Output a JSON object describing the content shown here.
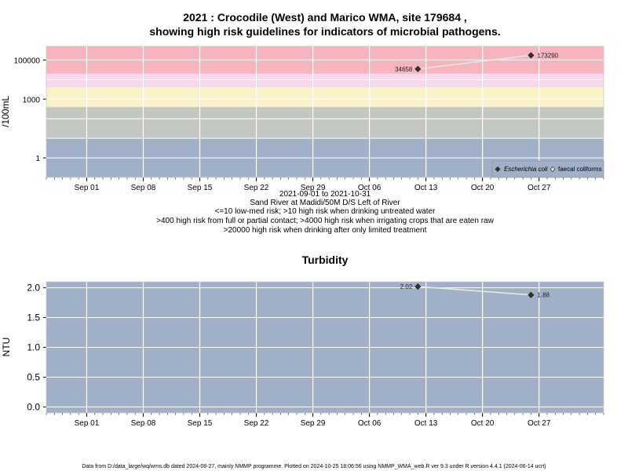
{
  "chart_data": [
    {
      "type": "scatter",
      "title_line1": "2021 : Crocodile (West) and Marico WMA, site 179684 ,",
      "title_line2": "showing high risk guidelines for indicators of microbial pathogens.",
      "ylabel": "/100mL",
      "yscale": "log",
      "ylim": [
        0.1,
        500000
      ],
      "yticks": [
        {
          "v": 1,
          "label": "1"
        },
        {
          "v": 1000,
          "label": "1000"
        },
        {
          "v": 100000,
          "label": "100000"
        }
      ],
      "xlim": [
        "2021-08-27",
        "2021-11-04"
      ],
      "xticks": [
        {
          "date": "2021-09-01",
          "label": "Sep 01"
        },
        {
          "date": "2021-09-08",
          "label": "Sep 08"
        },
        {
          "date": "2021-09-15",
          "label": "Sep 15"
        },
        {
          "date": "2021-09-22",
          "label": "Sep 22"
        },
        {
          "date": "2021-09-29",
          "label": "Sep 29"
        },
        {
          "date": "2021-10-06",
          "label": "Oct 06"
        },
        {
          "date": "2021-10-13",
          "label": "Oct 13"
        },
        {
          "date": "2021-10-20",
          "label": "Oct 20"
        },
        {
          "date": "2021-10-27",
          "label": "Oct 27"
        }
      ],
      "bands": [
        {
          "from": 0.1,
          "to": 10,
          "color": "#a0b0c8"
        },
        {
          "from": 10,
          "to": 400,
          "color": "#c2c8c0"
        },
        {
          "from": 400,
          "to": 4000,
          "color": "#f8f2c6"
        },
        {
          "from": 4000,
          "to": 20000,
          "color": "#f8d8ec"
        },
        {
          "from": 20000,
          "to": 500000,
          "color": "#f8b4bc"
        }
      ],
      "series": [
        {
          "name": "Escherichia coli",
          "marker": "filled-diamond",
          "points": [
            {
              "x": "2021-10-12",
              "y": 34658,
              "label": "34658"
            },
            {
              "x": "2021-10-26",
              "y": 173290,
              "label": "173290"
            }
          ]
        },
        {
          "name": "faecal coliforms",
          "marker": "open-diamond",
          "points": []
        }
      ],
      "legend_position": "bottom-right",
      "notes": [
        "2021-09-01 to 2021-10-31",
        "Sand River at Madidi/50M D/S Left of River",
        "<=10 low-med risk; >10 high risk when drinking untreated water",
        ">400 high risk from full or partial contact; >4000 high risk when irrigating crops that are eaten raw",
        ">20000 high risk when drinking after only limited treatment"
      ]
    },
    {
      "type": "scatter",
      "title": "Turbidity",
      "ylabel": "NTU",
      "ylim": [
        -0.1,
        2.1
      ],
      "yticks": [
        {
          "v": 0,
          "label": "0.0"
        },
        {
          "v": 0.5,
          "label": "0.5"
        },
        {
          "v": 1,
          "label": "1.0"
        },
        {
          "v": 1.5,
          "label": "1.5"
        },
        {
          "v": 2,
          "label": "2.0"
        }
      ],
      "xlim": [
        "2021-08-27",
        "2021-11-04"
      ],
      "xticks": [
        {
          "date": "2021-09-01",
          "label": "Sep 01"
        },
        {
          "date": "2021-09-08",
          "label": "Sep 08"
        },
        {
          "date": "2021-09-15",
          "label": "Sep 15"
        },
        {
          "date": "2021-09-22",
          "label": "Sep 22"
        },
        {
          "date": "2021-09-29",
          "label": "Sep 29"
        },
        {
          "date": "2021-10-06",
          "label": "Oct 06"
        },
        {
          "date": "2021-10-13",
          "label": "Oct 13"
        },
        {
          "date": "2021-10-20",
          "label": "Oct 20"
        },
        {
          "date": "2021-10-27",
          "label": "Oct 27"
        }
      ],
      "background": "#a0b0c8",
      "series": [
        {
          "marker": "filled-diamond",
          "points": [
            {
              "x": "2021-10-12",
              "y": 2.02,
              "label": "2.02"
            },
            {
              "x": "2021-10-26",
              "y": 1.88,
              "label": "1.88"
            }
          ]
        }
      ]
    }
  ],
  "footer": "Data from D:/data_large/wq/wms.db dated 2024-08-27, mainly NMMP programme. Plotted on 2024-10-25 18:06:56 using NMMP_WMA_web.R ver 9.3 under R version 4.4.1 (2024-06-14 ucrt)"
}
